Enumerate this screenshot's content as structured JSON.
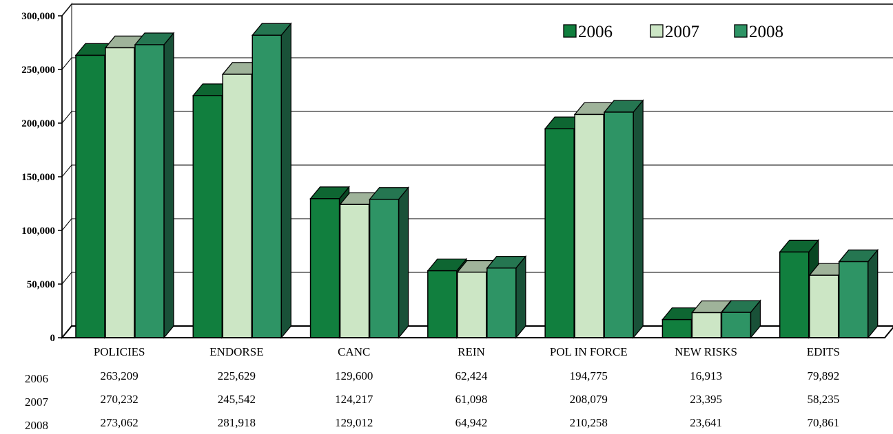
{
  "chart_data": {
    "type": "bar",
    "title": "",
    "xlabel": "",
    "ylabel": "",
    "ylim": [
      0,
      300000
    ],
    "yticks": [
      0,
      50000,
      100000,
      150000,
      200000,
      250000,
      300000
    ],
    "ytick_labels": [
      "0",
      "50,000",
      "100,000",
      "150,000",
      "200,000",
      "250,000",
      "300,000"
    ],
    "grid": true,
    "legend": "top-right",
    "categories": [
      "POLICIES",
      "ENDORSE",
      "CANC",
      "REIN",
      "POL IN FORCE",
      "NEW RISKS",
      "EDITS"
    ],
    "series": [
      {
        "name": "2006",
        "color": "#117f3e",
        "values": [
          263209,
          225629,
          129600,
          62424,
          194775,
          16913,
          79892
        ],
        "labels": [
          "263,209",
          "225,629",
          "129,600",
          "62,424",
          "194,775",
          "16,913",
          "79,892"
        ]
      },
      {
        "name": "2007",
        "color": "#cce6c5",
        "values": [
          270232,
          245542,
          124217,
          61098,
          208079,
          23395,
          58235
        ],
        "labels": [
          "270,232",
          "245,542",
          "124,217",
          "61,098",
          "208,079",
          "23,395",
          "58,235"
        ]
      },
      {
        "name": "2008",
        "color": "#2e9465",
        "values": [
          273062,
          281918,
          129012,
          64942,
          210258,
          23641,
          70861
        ],
        "labels": [
          "273,062",
          "281,918",
          "129,012",
          "64,942",
          "210,258",
          "23,641",
          "70,861"
        ]
      }
    ]
  }
}
